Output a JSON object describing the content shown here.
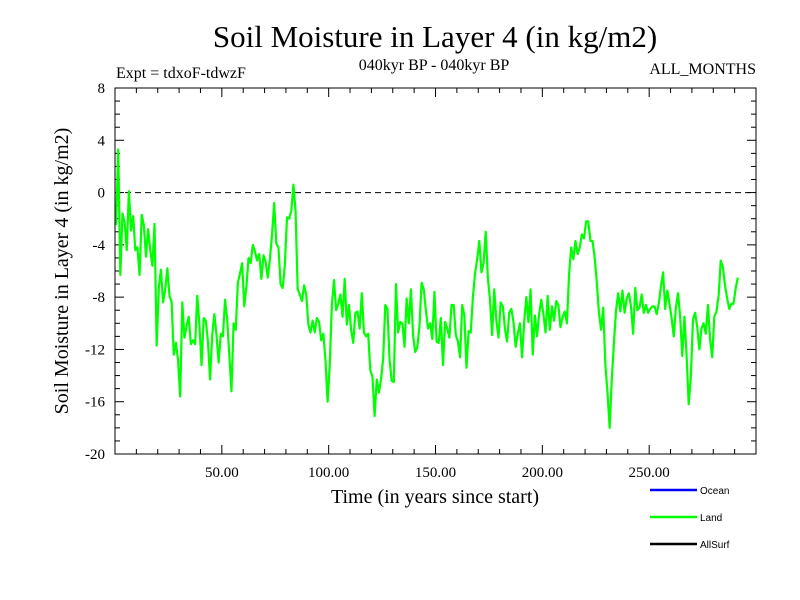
{
  "chart_data": {
    "type": "line",
    "title": "Soil Moisture in Layer 4 (in kg/m2)",
    "subtitle_left": "Expt = tdxoF-tdwzF",
    "subtitle_center": "040kyr BP - 040kyr BP",
    "subtitle_right": "ALL_MONTHS",
    "xlabel": "Time (in years since start)",
    "ylabel": "Soil Moisture in Layer 4 (in kg/m2)",
    "xlim": [
      0,
      300
    ],
    "ylim": [
      -20,
      8
    ],
    "xticks": [
      50,
      100,
      150,
      200,
      250
    ],
    "xtick_labels": [
      "50.00",
      "100.00",
      "150.00",
      "200.00",
      "250.00"
    ],
    "yticks": [
      8,
      4,
      0,
      -4,
      -8,
      -12,
      -16,
      -20
    ],
    "ytick_labels": [
      "8",
      "4",
      "0",
      "-4",
      "-8",
      "-12",
      "-16",
      "-20"
    ],
    "reference_line": {
      "y": 0,
      "style": "dashed"
    },
    "legend_position": "bottom-right",
    "series": [
      {
        "name": "Ocean",
        "color": "#0000ff",
        "values": []
      },
      {
        "name": "Land",
        "color": "#00ff00",
        "x_start": 0.5,
        "x_step": 1,
        "values": [
          -2.5,
          3.3,
          -6.3,
          -1.6,
          -2.3,
          -4.4,
          0.1,
          -2.9,
          -1.8,
          -4.4,
          -4.2,
          -6.3,
          -1.7,
          -2.5,
          -4.9,
          -2.8,
          -4.4,
          -5.6,
          -2.4,
          -11.7,
          -7.3,
          -5.9,
          -8.4,
          -7.4,
          -5.8,
          -7.9,
          -8.4,
          -12.4,
          -11.5,
          -12.8,
          -15.6,
          -8.4,
          -11.1,
          -10.2,
          -9.5,
          -11.6,
          -11.3,
          -11.6,
          -7.9,
          -10.1,
          -13.2,
          -9.6,
          -9.8,
          -11.4,
          -14.3,
          -10.9,
          -9.3,
          -10.9,
          -13.0,
          -10.8,
          -11.0,
          -8.2,
          -9.7,
          -12.4,
          -15.2,
          -10.0,
          -10.5,
          -6.9,
          -6.2,
          -5.4,
          -8.7,
          -7.2,
          -5.0,
          -5.4,
          -4.0,
          -4.5,
          -5.2,
          -4.7,
          -6.6,
          -4.8,
          -5.3,
          -6.5,
          -5.1,
          -3.2,
          -0.8,
          -3.9,
          -4.2,
          -7.0,
          -7.3,
          -5.5,
          -1.9,
          -2.0,
          -1.4,
          0.6,
          -1.4,
          -7.4,
          -7.8,
          -8.3,
          -7.1,
          -7.8,
          -10.1,
          -10.7,
          -9.8,
          -10.7,
          -9.6,
          -9.9,
          -11.3,
          -10.8,
          -12.8,
          -16.0,
          -13.2,
          -8.6,
          -6.7,
          -9.0,
          -8.5,
          -7.8,
          -9.5,
          -6.6,
          -10.1,
          -8.6,
          -10.5,
          -11.5,
          -9.2,
          -9.1,
          -10.4,
          -7.7,
          -10.7,
          -11.0,
          -10.8,
          -13.6,
          -14.1,
          -17.1,
          -14.3,
          -15.3,
          -14.3,
          -12.7,
          -8.6,
          -8.9,
          -12.8,
          -14.4,
          -14.5,
          -7.0,
          -10.7,
          -9.9,
          -10.0,
          -11.8,
          -8.1,
          -10.0,
          -7.4,
          -10.9,
          -12.2,
          -11.8,
          -10.2,
          -6.9,
          -7.4,
          -9.0,
          -10.4,
          -10.0,
          -11.2,
          -7.6,
          -11.4,
          -11.5,
          -9.6,
          -13.2,
          -9.9,
          -10.4,
          -11.1,
          -8.6,
          -8.6,
          -10.9,
          -11.4,
          -12.6,
          -8.6,
          -9.4,
          -13.4,
          -10.6,
          -10.7,
          -8.0,
          -6.2,
          -5.1,
          -3.7,
          -6.1,
          -5.4,
          -3.0,
          -6.5,
          -8.2,
          -10.9,
          -7.4,
          -9.8,
          -11.1,
          -8.4,
          -8.7,
          -10.4,
          -11.4,
          -9.2,
          -8.9,
          -9.9,
          -11.8,
          -10.8,
          -10.0,
          -12.6,
          -9.9,
          -8.0,
          -9.9,
          -7.4,
          -12.4,
          -9.4,
          -11.0,
          -9.3,
          -8.2,
          -9.3,
          -10.7,
          -7.9,
          -10.5,
          -8.7,
          -9.8,
          -8.3,
          -8.6,
          -10.3,
          -9.5,
          -9.1,
          -10.0,
          -6.3,
          -4.2,
          -5.1,
          -3.7,
          -4.7,
          -4.2,
          -3.2,
          -3.5,
          -2.2,
          -2.2,
          -3.7,
          -3.7,
          -5.0,
          -6.9,
          -9.2,
          -10.5,
          -8.8,
          -13.2,
          -15.3,
          -18.0,
          -14.3,
          -11.5,
          -9.0,
          -7.7,
          -9.1,
          -7.5,
          -9.2,
          -8.1,
          -7.7,
          -8.7,
          -10.8,
          -7.3,
          -9.0,
          -8.8,
          -7.8,
          -9.2,
          -8.6,
          -9.2,
          -8.9,
          -8.7,
          -8.7,
          -9.3,
          -8.5,
          -7.2,
          -6.1,
          -8.9,
          -7.5,
          -8.5,
          -9.6,
          -11.0,
          -8.8,
          -7.7,
          -9.5,
          -12.5,
          -9.5,
          -12.4,
          -16.2,
          -14.1,
          -9.7,
          -9.2,
          -10.3,
          -12.0,
          -10.4,
          -10.0,
          -10.8,
          -8.6,
          -11.2,
          -12.6,
          -9.5,
          -9.1,
          -7.9,
          -5.2,
          -5.7,
          -7.1,
          -8.1,
          -8.9,
          -8.5,
          -8.5,
          -7.3,
          -6.5
        ]
      },
      {
        "name": "AllSurf",
        "color": "#000000",
        "values": []
      }
    ]
  }
}
